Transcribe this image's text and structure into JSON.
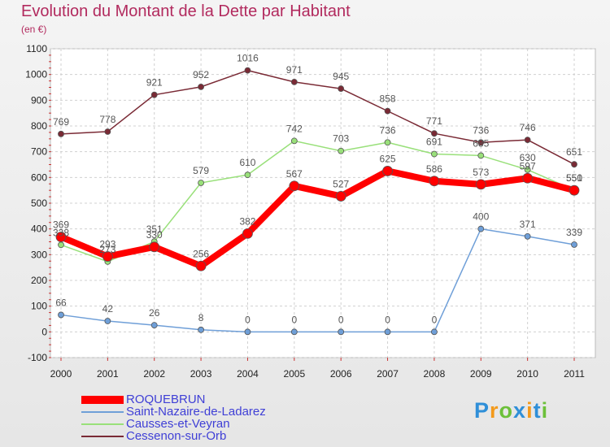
{
  "chart_data": {
    "type": "line",
    "title": "Evolution du Montant de la Dette par Habitant",
    "subtitle": "(en €)",
    "x": [
      "2000",
      "2001",
      "2002",
      "2003",
      "2004",
      "2005",
      "2006",
      "2007",
      "2008",
      "2009",
      "2010",
      "2011"
    ],
    "ylim": [
      -100,
      1100
    ],
    "yticks": [
      "-100",
      "0",
      "100",
      "200",
      "300",
      "400",
      "500",
      "600",
      "700",
      "800",
      "900",
      "1000",
      "1100"
    ],
    "grid": true,
    "legend_position": "bottom-left",
    "series": [
      {
        "name": "ROQUEBRUN",
        "color": "#ff0000",
        "values": [
          369,
          293,
          330,
          256,
          382,
          567,
          527,
          625,
          586,
          573,
          597,
          550
        ]
      },
      {
        "name": "Saint-Nazaire-de-Ladarez",
        "color": "#6f9fd8",
        "values": [
          66,
          42,
          26,
          8,
          0,
          0,
          0,
          0,
          0,
          400,
          371,
          339
        ]
      },
      {
        "name": "Causses-et-Veyran",
        "color": "#99e07a",
        "values": [
          338,
          273,
          351,
          579,
          610,
          742,
          703,
          736,
          691,
          685,
          630,
          551
        ]
      },
      {
        "name": "Cessenon-sur-Orb",
        "color": "#7a2a35",
        "values": [
          769,
          778,
          921,
          952,
          1016,
          971,
          945,
          858,
          771,
          736,
          746,
          651
        ]
      }
    ]
  },
  "brand": {
    "letters": [
      "P",
      "r",
      "o",
      "x",
      "i",
      "t",
      "i"
    ],
    "colors": [
      "#2f8fd8",
      "#f39a1b",
      "#6cc03a",
      "#2f8fd8",
      "#f39a1b",
      "#2f8fd8",
      "#6cc03a"
    ]
  }
}
